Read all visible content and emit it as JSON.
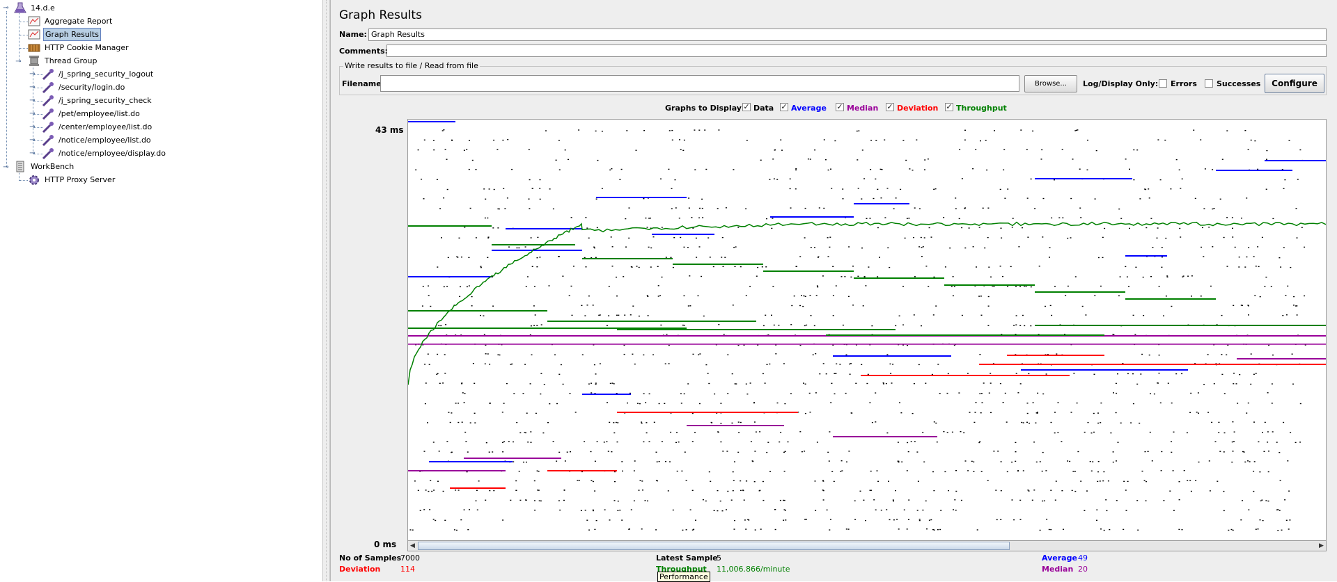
{
  "tree": {
    "items": [
      {
        "label": "14.d.e",
        "icon": "test-plan-flask-icon"
      },
      {
        "label": "Aggregate Report",
        "icon": "listener-report-icon"
      },
      {
        "label": "Graph Results",
        "icon": "listener-graph-icon"
      },
      {
        "label": "HTTP Cookie Manager",
        "icon": "cookie-manager-icon"
      },
      {
        "label": "Thread Group",
        "icon": "thread-group-spool-icon"
      },
      {
        "label": "/j_spring_security_logout",
        "icon": "http-sampler-pipette-icon"
      },
      {
        "label": "/security/login.do",
        "icon": "http-sampler-pipette-icon"
      },
      {
        "label": "/j_spring_security_check",
        "icon": "http-sampler-pipette-icon"
      },
      {
        "label": "/pet/employee/list.do",
        "icon": "http-sampler-pipette-icon"
      },
      {
        "label": "/center/employee/list.do",
        "icon": "http-sampler-pipette-icon"
      },
      {
        "label": "/notice/employee/list.do",
        "icon": "http-sampler-pipette-icon"
      },
      {
        "label": "/notice/employee/display.do",
        "icon": "http-sampler-pipette-icon"
      },
      {
        "label": "WorkBench",
        "icon": "workbench-icon"
      },
      {
        "label": "HTTP Proxy Server",
        "icon": "proxy-server-gear-icon"
      }
    ]
  },
  "panel": {
    "title": "Graph Results",
    "name_label": "Name:",
    "name_value": "Graph Results",
    "comments_label": "Comments:",
    "comments_value": "",
    "file_group_title": "Write results to file / Read from file",
    "filename_label": "Filename",
    "filename_value": "",
    "browse_label": "Browse...",
    "log_display_label": "Log/Display Only:",
    "errors_label": "Errors",
    "successes_label": "Successes",
    "configure_label": "Configure"
  },
  "graphs_to_display": {
    "label": "Graphs to Display",
    "options": [
      {
        "label": "Data",
        "checked": true,
        "color": "#000000"
      },
      {
        "label": "Average",
        "checked": true,
        "color": "#0000ff"
      },
      {
        "label": "Median",
        "checked": true,
        "color": "#990099"
      },
      {
        "label": "Deviation",
        "checked": true,
        "color": "#ff0000"
      },
      {
        "label": "Throughput",
        "checked": true,
        "color": "#008000"
      }
    ]
  },
  "chart_data": {
    "type": "scatter",
    "y_max_label": "43 ms",
    "y_min_label": "0 ms",
    "ylim": [
      0,
      43
    ],
    "series": [
      {
        "name": "Data",
        "color": "#000000"
      },
      {
        "name": "Average",
        "color": "#0000ff"
      },
      {
        "name": "Median",
        "color": "#990099"
      },
      {
        "name": "Deviation",
        "color": "#ff0000"
      },
      {
        "name": "Throughput",
        "color": "#008000"
      }
    ]
  },
  "stats": {
    "samples_label": "No of Samples",
    "samples_value": "7000",
    "latest_label": "Latest Sample",
    "latest_value": "5",
    "average_label": "Average",
    "average_value": "49",
    "deviation_label": "Deviation",
    "deviation_value": "114",
    "throughput_label": "Throughput",
    "throughput_value": "11,006.866/minute",
    "median_label": "Median",
    "median_value": "20"
  },
  "tooltip": "Performance"
}
